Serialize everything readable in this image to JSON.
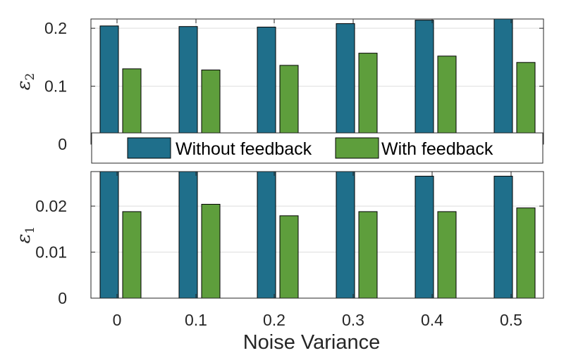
{
  "chart_data": [
    {
      "type": "bar",
      "panel": "top",
      "categories": [
        "0",
        "0.1",
        "0.2",
        "0.3",
        "0.4",
        "0.5"
      ],
      "series": [
        {
          "name": "Without feedback",
          "color": "#1f6f8b",
          "values": [
            0.204,
            0.203,
            0.202,
            0.208,
            0.214,
            0.216
          ]
        },
        {
          "name": "With feedback",
          "color": "#5e9e3c",
          "values": [
            0.13,
            0.128,
            0.136,
            0.157,
            0.152,
            0.141
          ]
        }
      ],
      "ylabel": "ε",
      "ylabel_sub": "2",
      "ylim": [
        0,
        0.216
      ],
      "yticks": [
        0,
        0.1,
        0.2
      ],
      "ytick_labels": [
        "0",
        "0.1",
        "0.2"
      ],
      "grid": true,
      "legend": "bottom-inside"
    },
    {
      "type": "bar",
      "panel": "bottom",
      "categories": [
        "0",
        "0.1",
        "0.2",
        "0.3",
        "0.4",
        "0.5"
      ],
      "series": [
        {
          "name": "Without feedback",
          "color": "#1f6f8b",
          "values": [
            0.0275,
            0.0275,
            0.0275,
            0.0275,
            0.0265,
            0.0265
          ]
        },
        {
          "name": "With feedback",
          "color": "#5e9e3c",
          "values": [
            0.0188,
            0.0204,
            0.0179,
            0.0188,
            0.0188,
            0.0196
          ]
        }
      ],
      "xlabel": "Noise Variance",
      "xtick_labels": [
        "0",
        "0.1",
        "0.2",
        "0.3",
        "0.4",
        "0.5"
      ],
      "ylabel": "ε",
      "ylabel_sub": "1",
      "ylim": [
        0,
        0.0275
      ],
      "yticks": [
        0,
        0.01,
        0.02
      ],
      "ytick_labels": [
        "0",
        "0.01",
        "0.02"
      ],
      "grid": true
    }
  ],
  "legend": {
    "entries": [
      {
        "label": "Without feedback",
        "color": "#1f6f8b"
      },
      {
        "label": "With feedback",
        "color": "#5e9e3c"
      }
    ]
  }
}
